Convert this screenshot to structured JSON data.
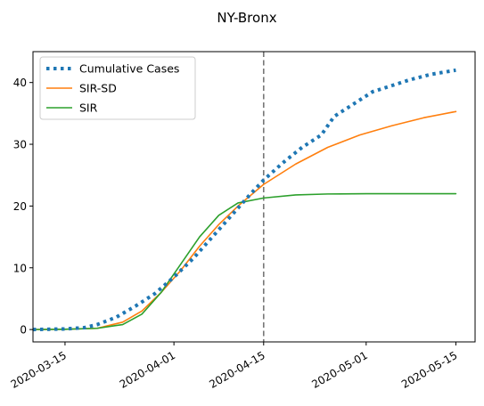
{
  "chart_data": {
    "type": "line",
    "title": "NY-Bronx",
    "xlabel": "",
    "ylabel": "",
    "x_start": "2020-03-10",
    "x_end": "2020-05-16",
    "xlim": [
      "2020-03-10",
      "2020-05-18"
    ],
    "ylim": [
      -2,
      45
    ],
    "x_ticks": [
      "2020-03-15",
      "2020-04-01",
      "2020-04-15",
      "2020-05-01",
      "2020-05-15"
    ],
    "y_ticks": [
      0,
      10,
      20,
      30,
      40
    ],
    "vline": {
      "date": "2020-04-15",
      "color": "#777777",
      "style": "dashed"
    },
    "grid": false,
    "legend_position": "top-left",
    "series": [
      {
        "name": "Cumulative Cases",
        "color": "#1f77b4",
        "style": "dotted",
        "points": [
          [
            "2020-03-10",
            0
          ],
          [
            "2020-03-15",
            0.1
          ],
          [
            "2020-03-18",
            0.3
          ],
          [
            "2020-03-20",
            0.8
          ],
          [
            "2020-03-23",
            2.0
          ],
          [
            "2020-03-26",
            3.8
          ],
          [
            "2020-03-29",
            5.8
          ],
          [
            "2020-04-01",
            8.5
          ],
          [
            "2020-04-04",
            11.5
          ],
          [
            "2020-04-07",
            15.0
          ],
          [
            "2020-04-10",
            18.5
          ],
          [
            "2020-04-13",
            22.0
          ],
          [
            "2020-04-15",
            24.2
          ],
          [
            "2020-04-18",
            27.0
          ],
          [
            "2020-04-21",
            29.5
          ],
          [
            "2020-04-24",
            31.5
          ],
          [
            "2020-04-26",
            34.5
          ],
          [
            "2020-04-29",
            36.5
          ],
          [
            "2020-05-02",
            38.5
          ],
          [
            "2020-05-05",
            39.5
          ],
          [
            "2020-05-08",
            40.5
          ],
          [
            "2020-05-11",
            41.3
          ],
          [
            "2020-05-15",
            42.0
          ]
        ]
      },
      {
        "name": "SIR-SD",
        "color": "#ff7f0e",
        "style": "solid",
        "points": [
          [
            "2020-03-10",
            0
          ],
          [
            "2020-03-15",
            0.05
          ],
          [
            "2020-03-20",
            0.2
          ],
          [
            "2020-03-24",
            1.2
          ],
          [
            "2020-03-27",
            3.0
          ],
          [
            "2020-03-30",
            6.0
          ],
          [
            "2020-04-02",
            9.5
          ],
          [
            "2020-04-05",
            13.5
          ],
          [
            "2020-04-08",
            17.0
          ],
          [
            "2020-04-11",
            20.0
          ],
          [
            "2020-04-15",
            23.5
          ],
          [
            "2020-04-20",
            26.8
          ],
          [
            "2020-04-25",
            29.5
          ],
          [
            "2020-04-30",
            31.5
          ],
          [
            "2020-05-05",
            33.0
          ],
          [
            "2020-05-10",
            34.3
          ],
          [
            "2020-05-15",
            35.3
          ]
        ]
      },
      {
        "name": "SIR",
        "color": "#2ca02c",
        "style": "solid",
        "points": [
          [
            "2020-03-10",
            0
          ],
          [
            "2020-03-15",
            0.05
          ],
          [
            "2020-03-20",
            0.2
          ],
          [
            "2020-03-24",
            0.8
          ],
          [
            "2020-03-27",
            2.5
          ],
          [
            "2020-03-30",
            6.0
          ],
          [
            "2020-04-02",
            10.5
          ],
          [
            "2020-04-05",
            15.0
          ],
          [
            "2020-04-08",
            18.5
          ],
          [
            "2020-04-11",
            20.5
          ],
          [
            "2020-04-15",
            21.3
          ],
          [
            "2020-04-20",
            21.8
          ],
          [
            "2020-04-25",
            21.95
          ],
          [
            "2020-05-01",
            22.0
          ],
          [
            "2020-05-15",
            22.0
          ]
        ]
      }
    ]
  }
}
